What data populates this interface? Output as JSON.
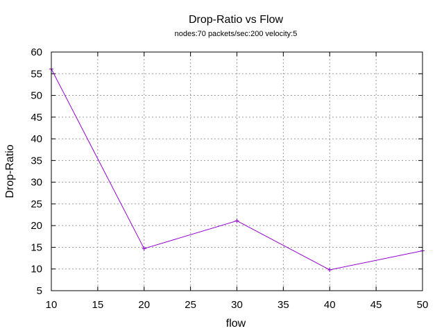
{
  "chart_data": {
    "type": "line",
    "title": "Drop-Ratio vs Flow",
    "subtitle": "nodes:70  packets/sec:200  velocity:5",
    "xlabel": "flow",
    "ylabel": "Drop-Ratio",
    "xlim": [
      10,
      50
    ],
    "ylim": [
      5,
      60
    ],
    "xticks": [
      "10",
      "15",
      "20",
      "25",
      "30",
      "35",
      "40",
      "45",
      "50"
    ],
    "yticks": [
      "5",
      "10",
      "15",
      "20",
      "25",
      "30",
      "35",
      "40",
      "45",
      "50",
      "55",
      "60"
    ],
    "grid": true,
    "legend": "none",
    "series": [
      {
        "color": "#9400d3",
        "marker": "plus",
        "x": [
          10,
          20,
          30,
          40,
          50
        ],
        "y": [
          56.1,
          14.7,
          21.1,
          9.8,
          14.2
        ]
      }
    ]
  }
}
